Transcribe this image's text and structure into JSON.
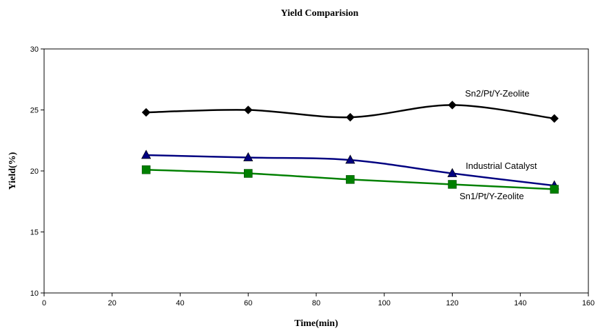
{
  "chart_data": {
    "type": "line",
    "title": "Yield Comparision",
    "xlabel": "Time(min)",
    "ylabel": "Yield(%)",
    "xlim": [
      0,
      160
    ],
    "ylim": [
      10,
      30
    ],
    "x_ticks": [
      0,
      20,
      40,
      60,
      80,
      100,
      120,
      140,
      160
    ],
    "y_ticks": [
      10,
      15,
      20,
      25,
      30
    ],
    "grid": false,
    "legend": "inline labels near series",
    "series": [
      {
        "name": "Sn2/Pt/Y-Zeolite",
        "color": "#000000",
        "marker": "diamond",
        "x": [
          30,
          60,
          90,
          120,
          150
        ],
        "y": [
          24.8,
          25.0,
          24.4,
          25.4,
          24.3
        ]
      },
      {
        "name": "Industrial Catalyst",
        "color": "#000080",
        "marker": "triangle",
        "x": [
          30,
          60,
          90,
          120,
          150
        ],
        "y": [
          21.3,
          21.1,
          20.9,
          19.8,
          18.8
        ]
      },
      {
        "name": "Sn1/Pt/Y-Zeolite",
        "color": "#008000",
        "marker": "square",
        "x": [
          30,
          60,
          90,
          120,
          150
        ],
        "y": [
          20.1,
          19.8,
          19.3,
          18.9,
          18.5
        ]
      }
    ]
  }
}
